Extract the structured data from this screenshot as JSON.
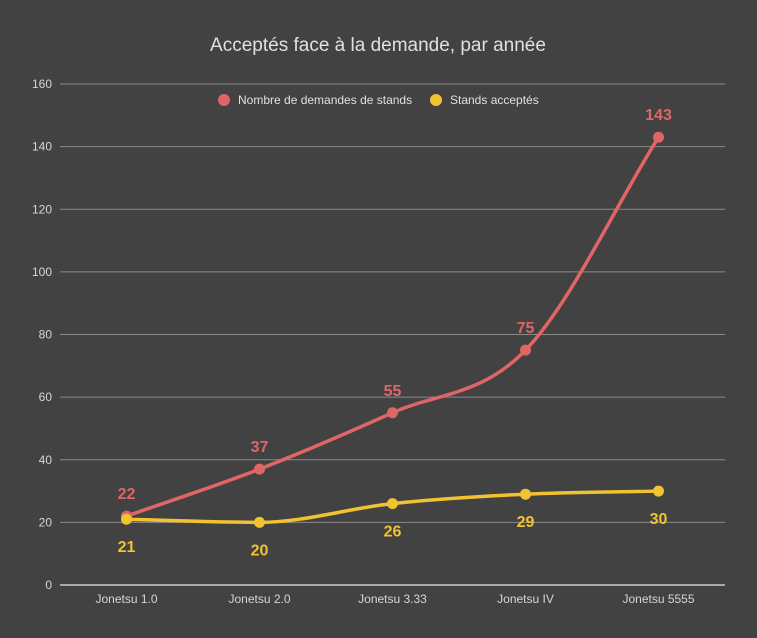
{
  "chart_data": {
    "type": "line",
    "title": "Acceptés face à la demande, par année",
    "categories": [
      "Jonetsu 1.0",
      "Jonetsu 2.0",
      "Jonetsu 3.33",
      "Jonetsu IV",
      "Jonetsu 5555"
    ],
    "series": [
      {
        "name": "Nombre de demandes de stands",
        "values": [
          22,
          37,
          55,
          75,
          143
        ],
        "color": "#e06666",
        "label_position": "above"
      },
      {
        "name": "Stands acceptés",
        "values": [
          21,
          20,
          26,
          29,
          30
        ],
        "color": "#f1c232",
        "label_position": "below"
      }
    ],
    "ylim": [
      0,
      160
    ],
    "yticks": [
      0,
      20,
      40,
      60,
      80,
      100,
      120,
      140,
      160
    ],
    "grid": true,
    "smooth": true,
    "legend": "top-center",
    "background": "#424242"
  }
}
